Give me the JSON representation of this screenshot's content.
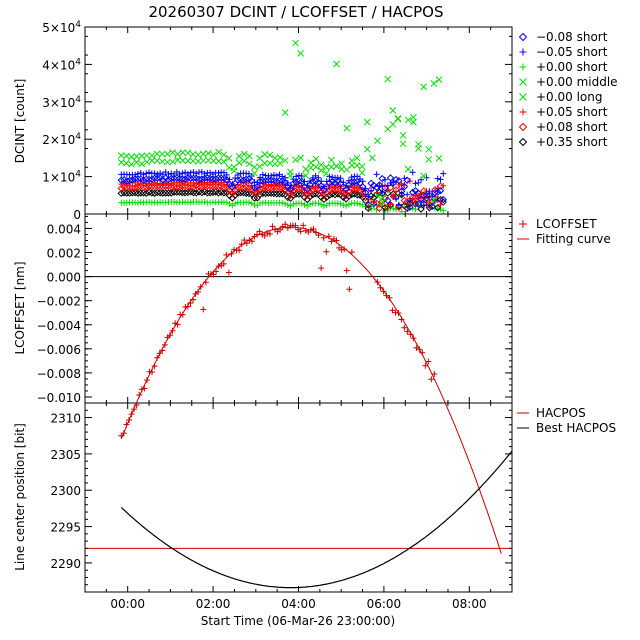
{
  "chart_data": {
    "title": "20260307 DCINT / LCOFFSET / HACPOS",
    "xlabel": "Start Time (06-Mar-26 23:00:00)",
    "x_ticks": [
      "00:00",
      "02:00",
      "04:00",
      "06:00",
      "08:00"
    ],
    "x_range_hours": [
      -1.0,
      9.0
    ],
    "panels": [
      {
        "type": "scatter",
        "ylabel": "DCINT [count]",
        "ylim": [
          0,
          50000
        ],
        "y_ticks": [
          {
            "value": 0,
            "mant": "0",
            "exp": ""
          },
          {
            "value": 10000,
            "mant": "1×10",
            "exp": "4"
          },
          {
            "value": 20000,
            "mant": "2×10",
            "exp": "4"
          },
          {
            "value": 30000,
            "mant": "3×10",
            "exp": "4"
          },
          {
            "value": 40000,
            "mant": "4×10",
            "exp": "4"
          },
          {
            "value": 50000,
            "mant": "5×10",
            "exp": "4"
          }
        ],
        "series": [
          {
            "name": "−0.08 short",
            "marker": "diamond",
            "color": "#0000ff",
            "approx_level": 9000
          },
          {
            "name": "−0.05 short",
            "marker": "plus",
            "color": "#0000ff",
            "approx_level": 10500
          },
          {
            "name": "+0.00 short",
            "marker": "plus",
            "color": "#00dd00",
            "approx_level": 3000
          },
          {
            "name": "+0.00 middle",
            "marker": "cross",
            "color": "#00dd00",
            "approx_level": 13500
          },
          {
            "name": "+0.00 long",
            "marker": "cross",
            "color": "#00dd00",
            "approx_level": 15500
          },
          {
            "name": "+0.05 short",
            "marker": "plus",
            "color": "#ff0000",
            "approx_level": 8000
          },
          {
            "name": "+0.08 short",
            "marker": "diamond",
            "color": "#ff0000",
            "approx_level": 7000
          },
          {
            "name": "+0.35 short",
            "marker": "diamond",
            "color": "#000000",
            "approx_level": 5500
          }
        ]
      },
      {
        "type": "scatter",
        "ylabel": "LCOFFSET [nm]",
        "ylim": [
          -0.0105,
          0.0052
        ],
        "y_ticks": [
          0.004,
          0.002,
          0.0,
          -0.002,
          -0.004,
          -0.006,
          -0.008,
          -0.01
        ],
        "y_tick_labels": [
          "0.004",
          "0.002",
          "0.000",
          "−0.002",
          "−0.004",
          "−0.006",
          "−0.008",
          "−0.010"
        ],
        "zero_line": 0.0,
        "series": [
          {
            "name": "LCOFFSET",
            "marker": "plus",
            "color": "#cc0000"
          },
          {
            "name": "Fitting curve",
            "marker": "line",
            "color": "#cc0000",
            "quadratic": {
              "vertex_hour": 3.82,
              "vertex_value": 0.0041,
              "coef": -0.001116
            }
          }
        ]
      },
      {
        "type": "line",
        "ylabel": "Line center position [bit]",
        "ylim": [
          2286,
          2312
        ],
        "y_ticks": [
          2290,
          2295,
          2300,
          2305,
          2310
        ],
        "series": [
          {
            "name": "HACPOS",
            "color": "#cc0000",
            "constant": 2292
          },
          {
            "name": "Best HACPOS",
            "color": "#000000",
            "quadratic": {
              "vertex_hour": 3.82,
              "vertex_value": 2286.6,
              "coef": 0.7
            }
          }
        ]
      }
    ]
  }
}
